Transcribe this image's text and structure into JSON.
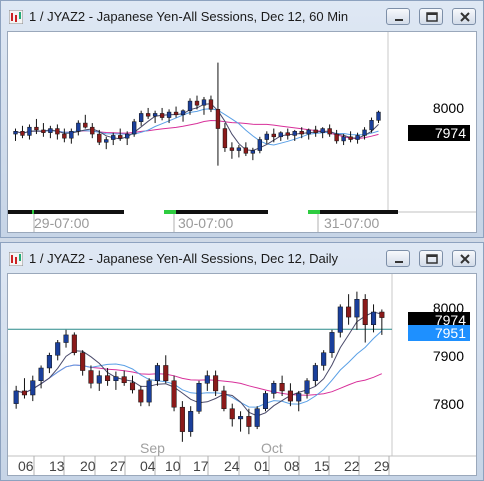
{
  "colors": {
    "bull_candle": "#1a3f9b",
    "bear_candle": "#8b1a1a",
    "ma_magenta": "#d8309a",
    "ma_blue": "#5aa0e6",
    "ma_dark": "#4a4a6a",
    "last_price_bg": "#000000",
    "settle_bg": "#1e90ff",
    "settle_line": "#2a8a8a"
  },
  "icons": [
    "chart-app-icon",
    "minimize-icon",
    "maximize-icon",
    "close-icon"
  ],
  "window_top": {
    "title": "1 / JYAZ2 - Japanese Yen-All Sessions, Dec 12, 60 Min",
    "price_label": "8000",
    "last_price": "7974",
    "x_labels": [
      "29-07:00",
      "30-07:00",
      "31-07:00"
    ]
  },
  "window_bottom": {
    "title": "1 / JYAZ2 - Japanese Yen-All Sessions, Dec 12, Daily",
    "price_labels": [
      "8000",
      "7900",
      "7800"
    ],
    "last_price": "7974",
    "settle_price": "7951",
    "months": [
      "Sep",
      "Oct"
    ],
    "day_labels": [
      "06",
      "13",
      "20",
      "27",
      "04",
      "10",
      "17",
      "24",
      "01",
      "08",
      "15",
      "22",
      "29"
    ]
  },
  "chart_data": [
    {
      "type": "candlestick",
      "title": "1 / JYAZ2 - Japanese Yen-All Sessions, Dec 12, 60 Min",
      "x_tick_labels": [
        "29-07:00",
        "30-07:00",
        "31-07:00"
      ],
      "y_tick_labels": [
        "8000"
      ],
      "last_price": 7974,
      "ylim": [
        7910,
        8025
      ],
      "grid": false,
      "series": [
        {
          "name": "price",
          "ohlc": [
            [
              7958,
              7962,
              7953,
              7960
            ],
            [
              7960,
              7964,
              7955,
              7957
            ],
            [
              7957,
              7965,
              7954,
              7963
            ],
            [
              7963,
              7969,
              7958,
              7961
            ],
            [
              7961,
              7966,
              7956,
              7959
            ],
            [
              7959,
              7964,
              7955,
              7962
            ],
            [
              7962,
              7965,
              7954,
              7958
            ],
            [
              7958,
              7962,
              7952,
              7955
            ],
            [
              7955,
              7962,
              7951,
              7960
            ],
            [
              7960,
              7968,
              7957,
              7966
            ],
            [
              7966,
              7972,
              7962,
              7963
            ],
            [
              7963,
              7966,
              7955,
              7958
            ],
            [
              7958,
              7961,
              7950,
              7952
            ],
            [
              7952,
              7956,
              7947,
              7954
            ],
            [
              7954,
              7959,
              7950,
              7957
            ],
            [
              7957,
              7962,
              7953,
              7955
            ],
            [
              7955,
              7960,
              7950,
              7958
            ],
            [
              7958,
              7969,
              7956,
              7967
            ],
            [
              7967,
              7975,
              7964,
              7973
            ],
            [
              7973,
              7977,
              7969,
              7971
            ],
            [
              7971,
              7975,
              7966,
              7973
            ],
            [
              7973,
              7977,
              7968,
              7970
            ],
            [
              7970,
              7976,
              7966,
              7974
            ],
            [
              7974,
              7978,
              7970,
              7972
            ],
            [
              7972,
              7976,
              7967,
              7975
            ],
            [
              7975,
              7984,
              7972,
              7982
            ],
            [
              7982,
              7986,
              7976,
              7979
            ],
            [
              7979,
              7985,
              7972,
              7983
            ],
            [
              7983,
              7986,
              7974,
              7976
            ],
            [
              7976,
              8010,
              7935,
              7962
            ],
            [
              7962,
              7966,
              7945,
              7948
            ],
            [
              7948,
              7952,
              7940,
              7946
            ],
            [
              7946,
              7950,
              7941,
              7948
            ],
            [
              7948,
              7952,
              7942,
              7944
            ],
            [
              7944,
              7948,
              7939,
              7946
            ],
            [
              7946,
              7956,
              7944,
              7954
            ],
            [
              7954,
              7960,
              7951,
              7958
            ],
            [
              7958,
              7962,
              7952,
              7956
            ],
            [
              7956,
              7960,
              7953,
              7959
            ],
            [
              7959,
              7962,
              7954,
              7957
            ],
            [
              7957,
              7961,
              7953,
              7960
            ],
            [
              7960,
              7963,
              7955,
              7958
            ],
            [
              7958,
              7962,
              7954,
              7961
            ],
            [
              7961,
              7964,
              7956,
              7959
            ],
            [
              7959,
              7963,
              7955,
              7962
            ],
            [
              7962,
              7965,
              7956,
              7958
            ],
            [
              7958,
              7961,
              7951,
              7953
            ],
            [
              7953,
              7958,
              7950,
              7956
            ],
            [
              7956,
              7960,
              7952,
              7954
            ],
            [
              7954,
              7959,
              7951,
              7957
            ],
            [
              7957,
              7963,
              7954,
              7961
            ],
            [
              7961,
              7970,
              7959,
              7968
            ],
            [
              7968,
              7975,
              7966,
              7974
            ]
          ]
        }
      ]
    },
    {
      "type": "candlestick",
      "title": "1 / JYAZ2 - Japanese Yen-All Sessions, Dec 12, Daily",
      "x_tick_labels": [
        "06",
        "13",
        "20",
        "27",
        "04",
        "10",
        "17",
        "24",
        "01",
        "08",
        "15",
        "22",
        "29"
      ],
      "months": [
        "Sep",
        "Oct"
      ],
      "y_tick_labels": [
        "8000",
        "7900",
        "7800"
      ],
      "last_price": 7974,
      "settle_price": 7951,
      "ylim": [
        7710,
        8040
      ],
      "grid": false,
      "series": [
        {
          "name": "price",
          "ohlc": [
            [
              7805,
              7840,
              7795,
              7830
            ],
            [
              7830,
              7855,
              7815,
              7822
            ],
            [
              7822,
              7860,
              7810,
              7850
            ],
            [
              7850,
              7880,
              7835,
              7875
            ],
            [
              7875,
              7905,
              7865,
              7900
            ],
            [
              7900,
              7930,
              7890,
              7925
            ],
            [
              7925,
              7950,
              7915,
              7940
            ],
            [
              7940,
              7945,
              7900,
              7905
            ],
            [
              7905,
              7910,
              7860,
              7870
            ],
            [
              7870,
              7880,
              7835,
              7845
            ],
            [
              7845,
              7870,
              7830,
              7860
            ],
            [
              7860,
              7875,
              7840,
              7850
            ],
            [
              7850,
              7868,
              7832,
              7858
            ],
            [
              7858,
              7870,
              7840,
              7846
            ],
            [
              7846,
              7860,
              7825,
              7832
            ],
            [
              7832,
              7840,
              7800,
              7808
            ],
            [
              7808,
              7855,
              7800,
              7850
            ],
            [
              7850,
              7885,
              7840,
              7880
            ],
            [
              7880,
              7900,
              7845,
              7850
            ],
            [
              7850,
              7860,
              7790,
              7798
            ],
            [
              7798,
              7810,
              7730,
              7750
            ],
            [
              7750,
              7800,
              7740,
              7790
            ],
            [
              7790,
              7850,
              7785,
              7845
            ],
            [
              7845,
              7870,
              7830,
              7860
            ],
            [
              7860,
              7870,
              7820,
              7830
            ],
            [
              7830,
              7840,
              7790,
              7795
            ],
            [
              7795,
              7805,
              7760,
              7775
            ],
            [
              7775,
              7790,
              7750,
              7780
            ],
            [
              7780,
              7795,
              7745,
              7760
            ],
            [
              7760,
              7800,
              7755,
              7795
            ],
            [
              7795,
              7830,
              7790,
              7825
            ],
            [
              7825,
              7850,
              7815,
              7845
            ],
            [
              7845,
              7860,
              7820,
              7830
            ],
            [
              7830,
              7845,
              7800,
              7810
            ],
            [
              7810,
              7830,
              7790,
              7825
            ],
            [
              7825,
              7855,
              7815,
              7850
            ],
            [
              7850,
              7885,
              7840,
              7880
            ],
            [
              7880,
              7910,
              7870,
              7905
            ],
            [
              7905,
              7950,
              7895,
              7945
            ],
            [
              7945,
              8000,
              7935,
              7995
            ],
            [
              7995,
              8020,
              7960,
              7975
            ],
            [
              7975,
              8025,
              7950,
              8010
            ],
            [
              8010,
              8020,
              7925,
              7960
            ],
            [
              7960,
              8000,
              7945,
              7985
            ],
            [
              7985,
              7990,
              7940,
              7974
            ]
          ]
        }
      ]
    }
  ]
}
